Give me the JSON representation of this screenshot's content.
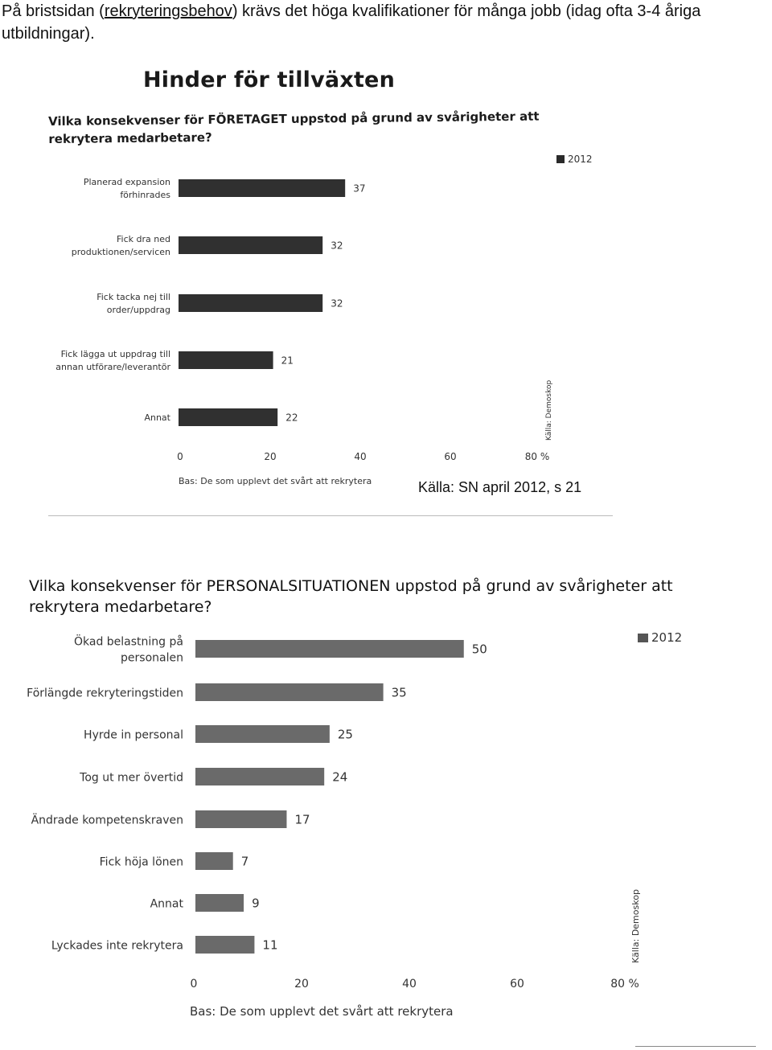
{
  "intro": {
    "before": "På bristsidan (",
    "link": "rekryteringsbehov",
    "after": ") krävs det höga kvalifikationer för många jobb (idag ofta 3-4 åriga utbildningar)."
  },
  "heading": "Hinder för tillväxten",
  "source_main": "Källa: SN april 2012, s 21",
  "colors": {
    "bar1": "#303030",
    "bar2": "#6a6a6a"
  },
  "chart_data": [
    {
      "type": "bar",
      "orientation": "horizontal",
      "title": "Vilka konsekvenser för FÖRETAGET uppstod på grund av svårigheter att rekrytera medarbetare?",
      "categories": [
        [
          "Planerad expansion",
          "förhinrades"
        ],
        [
          "Fick dra ned",
          "produktionen/servicen"
        ],
        [
          "Fick tacka nej till",
          "order/uppdrag"
        ],
        [
          "Fick lägga ut uppdrag till",
          "annan utförare/leverantör"
        ],
        [
          "Annat"
        ]
      ],
      "series": [
        {
          "name": "2012",
          "values": [
            37,
            32,
            32,
            21,
            22
          ]
        }
      ],
      "value_labels": [
        "37",
        "32",
        "32",
        "21",
        "22"
      ],
      "xlim": [
        0,
        80
      ],
      "xticks": [
        "0",
        "20",
        "40",
        "60",
        "80 %"
      ],
      "legend": "2012",
      "legend_position": "top-right",
      "note": "Bas: De som upplevt det svårt att rekrytera",
      "source": "Källa: Demoskop",
      "grid": false
    },
    {
      "type": "bar",
      "orientation": "horizontal",
      "title": "Vilka konsekvenser för PERSONALSITUATIONEN uppstod på grund av svårigheter att rekrytera medarbetare?",
      "categories": [
        [
          "Ökad belastning på",
          "personalen"
        ],
        [
          "Förlängde rekryteringstiden"
        ],
        [
          "Hyrde in personal"
        ],
        [
          "Tog ut mer övertid"
        ],
        [
          "Ändrade kompetenskraven"
        ],
        [
          "Fick höja lönen"
        ],
        [
          "Annat"
        ],
        [
          "Lyckades inte rekrytera"
        ]
      ],
      "series": [
        {
          "name": "2012",
          "values": [
            50,
            35,
            25,
            24,
            17,
            7,
            9,
            11
          ]
        }
      ],
      "value_labels": [
        "50",
        "35",
        "25",
        "24",
        "17",
        "7",
        "9",
        "11"
      ],
      "xlim": [
        0,
        80
      ],
      "xticks": [
        "0",
        "20",
        "40",
        "60",
        "80 %"
      ],
      "legend": "2012",
      "legend_position": "top-right",
      "note": "Bas: De som upplevt det svårt att rekrytera",
      "source": "Källa: Demoskop",
      "grid": false
    }
  ]
}
